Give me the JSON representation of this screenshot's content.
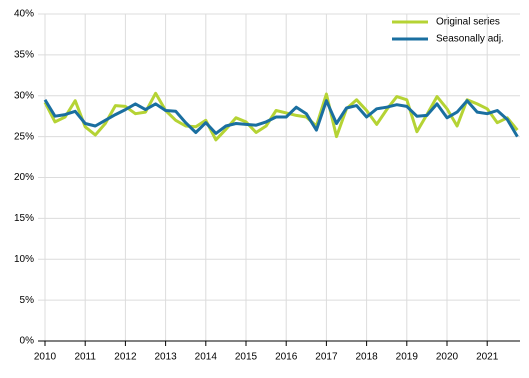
{
  "chart_data": {
    "type": "line",
    "categories": [
      "2010",
      null,
      null,
      null,
      "2011",
      null,
      null,
      null,
      "2012",
      null,
      null,
      null,
      "2013",
      null,
      null,
      null,
      "2014",
      null,
      null,
      null,
      "2015",
      null,
      null,
      null,
      "2016",
      null,
      null,
      null,
      "2017",
      null,
      null,
      null,
      "2018",
      null,
      null,
      null,
      "2019",
      null,
      null,
      null,
      "2020",
      null,
      null,
      null,
      "2021",
      null,
      null,
      null
    ],
    "series": [
      {
        "name": "Original series",
        "color": "#b5d334",
        "values": [
          29.2,
          26.8,
          27.4,
          29.4,
          26.2,
          25.2,
          26.6,
          28.8,
          28.7,
          27.8,
          28.0,
          30.3,
          28.2,
          27.0,
          26.3,
          26.2,
          27.0,
          24.6,
          25.9,
          27.3,
          26.8,
          25.5,
          26.3,
          28.2,
          27.9,
          27.6,
          27.4,
          26.3,
          30.2,
          25.0,
          28.4,
          29.5,
          28.2,
          26.5,
          28.3,
          29.9,
          29.5,
          25.6,
          27.7,
          29.9,
          28.4,
          26.3,
          29.5,
          29.0,
          28.4,
          26.7,
          27.3,
          25.8
        ]
      },
      {
        "name": "Seasonally adj.",
        "color": "#1a6fa0",
        "values": [
          29.5,
          27.5,
          27.7,
          28.1,
          26.6,
          26.3,
          27.0,
          27.7,
          28.3,
          29.0,
          28.3,
          29.0,
          28.2,
          28.1,
          26.7,
          25.5,
          26.7,
          25.4,
          26.3,
          26.6,
          26.5,
          26.4,
          26.8,
          27.4,
          27.4,
          28.6,
          27.8,
          25.8,
          29.4,
          26.6,
          28.5,
          28.8,
          27.4,
          28.4,
          28.6,
          28.9,
          28.7,
          27.5,
          27.6,
          29.0,
          27.3,
          28.0,
          29.4,
          28.0,
          27.8,
          28.2,
          27.1,
          25.0
        ]
      }
    ],
    "ylim": [
      0,
      40
    ],
    "yticks": [
      {
        "value": 0,
        "label": "0%"
      },
      {
        "value": 5,
        "label": "5%"
      },
      {
        "value": 10,
        "label": "10%"
      },
      {
        "value": 15,
        "label": "15%"
      },
      {
        "value": 20,
        "label": "20%"
      },
      {
        "value": 25,
        "label": "25%"
      },
      {
        "value": 30,
        "label": "30%"
      },
      {
        "value": 35,
        "label": "35%"
      },
      {
        "value": 40,
        "label": "40%"
      }
    ],
    "grid": true,
    "legend": "top-right"
  }
}
